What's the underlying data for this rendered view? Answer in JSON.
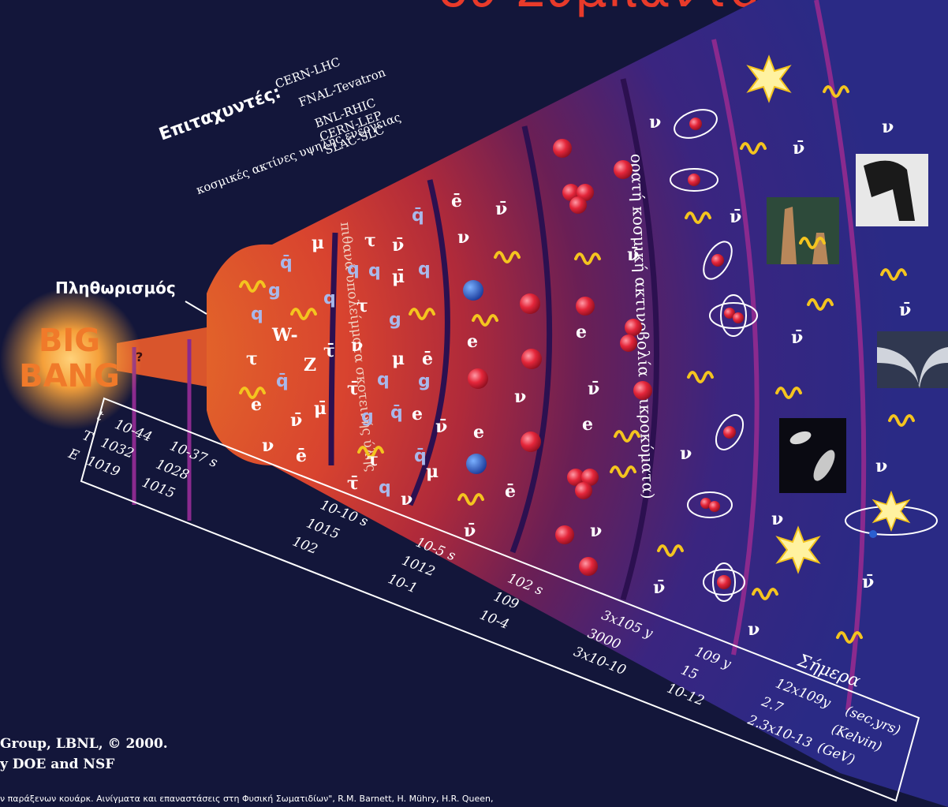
{
  "title_fragment": "ου Σύμπαντος",
  "bigbang": {
    "line1": "BIG",
    "line2": "BANG",
    "question": "?"
  },
  "labels": {
    "inflation": "Πληθωρισμός",
    "accelerators_title": "Επιταχυντές:",
    "cosmic_rays": "κοσμικές ακτίνες υψηλής ενέργειας",
    "relic_text": "πιθανά υπολείμματα σκοτεινής ύλης",
    "cmb_text": "ορατή κοσμική ακτινοβολία (μικροκύματα)",
    "today": "Σήμερα"
  },
  "accelerators": [
    "CERN-LHC",
    "FNAL-Tevatron",
    "BNL-RHIC",
    "CERN-LEP",
    "SLAC-SLC"
  ],
  "axis": {
    "row_labels": [
      "t",
      "T",
      "E"
    ],
    "units": [
      "(sec,yrs)",
      "(Kelvin)",
      "(GeV)"
    ],
    "columns": [
      {
        "t": "10-44",
        "T": "1032",
        "E": "1019"
      },
      {
        "t": "10-37 s",
        "T": "1028",
        "E": "1015"
      },
      {
        "t": "10-10 s",
        "T": "1015",
        "E": "102"
      },
      {
        "t": "10-5 s",
        "T": "1012",
        "E": "10-1"
      },
      {
        "t": "102 s",
        "T": "109",
        "E": "10-4"
      },
      {
        "t": "3x105 y",
        "T": "3000",
        "E": "3x10-10"
      },
      {
        "t": "109 y",
        "T": "15",
        "E": "10-12"
      },
      {
        "t": "12x109y",
        "T": "2.7",
        "E": "2.3x10-13"
      }
    ]
  },
  "credits": {
    "line1": "Group, LBNL, © 2000.",
    "line2": "y DOE and NSF"
  },
  "footer": "ν παράξενων κουάρκ. Αινίγματα και επαναστάσεις στη Φυσική Σωματιδίων\", R.M. Barnett, H. Mühry, H.R. Queen,",
  "particles": {
    "quark": "q",
    "antiquark": "q̄",
    "gluon": "g",
    "muon": "μ",
    "antimuon": "μ̄",
    "tau": "τ",
    "antitau": "τ̄",
    "neutrino": "ν",
    "antineutrino": "ν̄",
    "electron": "e",
    "positron": "ē",
    "w_boson": "W-",
    "z_boson": "Z"
  },
  "colors": {
    "background": "#13163a",
    "title": "#e83a2a",
    "photon": "#f4c41f",
    "proton": "#e4263a",
    "ring": "#8a2a8e",
    "quark_label": "#a9b8ea",
    "bigbang": "#f07a2a"
  },
  "images": [
    "dinosaur-photo",
    "pillars-of-creation-photo",
    "spacetime-well-render",
    "galaxy-pair-photo"
  ]
}
